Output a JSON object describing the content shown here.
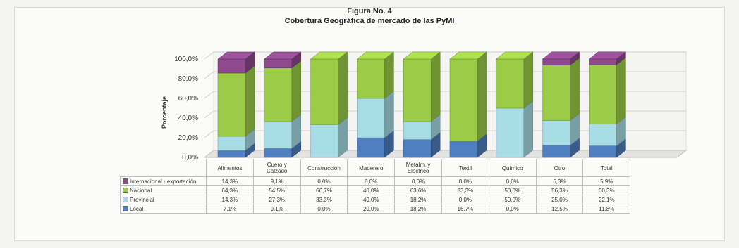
{
  "figure": {
    "title": "Figura No. 4",
    "subtitle": "Cobertura Geográfica de mercado de las PyMI"
  },
  "colors": {
    "Local": "#4f7fc0",
    "Provincial": "#a8dde6",
    "Nacional": "#9ccc47",
    "Internacional - exportación": "#8e4a8d"
  },
  "chart_data": {
    "type": "bar",
    "stacked": true,
    "title": "Cobertura Geográfica de mercado de las PyMI",
    "ylabel": "Porcentaje",
    "ylim": [
      0,
      100
    ],
    "yticks": [
      "0,0%",
      "20,0%",
      "40,0%",
      "60,0%",
      "80,0%",
      "100,0%"
    ],
    "categories": [
      "Alimentos",
      "Cuero y Calzado",
      "Construcción",
      "Maderero",
      "Metalm. y Eléctrico",
      "Textil",
      "Químico",
      "Otro",
      "Total"
    ],
    "series": [
      {
        "name": "Local",
        "values": [
          7.1,
          9.1,
          0.0,
          20.0,
          18.2,
          16.7,
          0.0,
          12.5,
          11.8
        ],
        "labels": [
          "7,1%",
          "9,1%",
          "0,0%",
          "20,0%",
          "18,2%",
          "16,7%",
          "0,0%",
          "12,5%",
          "11,8%"
        ]
      },
      {
        "name": "Provincial",
        "values": [
          14.3,
          27.3,
          33.3,
          40.0,
          18.2,
          0.0,
          50.0,
          25.0,
          22.1
        ],
        "labels": [
          "14,3%",
          "27,3%",
          "33,3%",
          "40,0%",
          "18,2%",
          "0,0%",
          "50,0%",
          "25,0%",
          "22,1%"
        ]
      },
      {
        "name": "Nacional",
        "values": [
          64.3,
          54.5,
          66.7,
          40.0,
          63.6,
          83.3,
          50.0,
          56.3,
          60.3
        ],
        "labels": [
          "64,3%",
          "54,5%",
          "66,7%",
          "40,0%",
          "63,6%",
          "83,3%",
          "50,0%",
          "56,3%",
          "60,3%"
        ]
      },
      {
        "name": "Internacional - exportación",
        "values": [
          14.3,
          9.1,
          0.0,
          0.0,
          0.0,
          0.0,
          0.0,
          6.3,
          5.9
        ],
        "labels": [
          "14,3%",
          "9,1%",
          "0,0%",
          "0,0%",
          "0,0%",
          "0,0%",
          "0,0%",
          "6,3%",
          "5,9%"
        ]
      }
    ],
    "table_rows": [
      "Internacional - exportación",
      "Nacional",
      "Provincial",
      "Local"
    ],
    "grid": true
  }
}
